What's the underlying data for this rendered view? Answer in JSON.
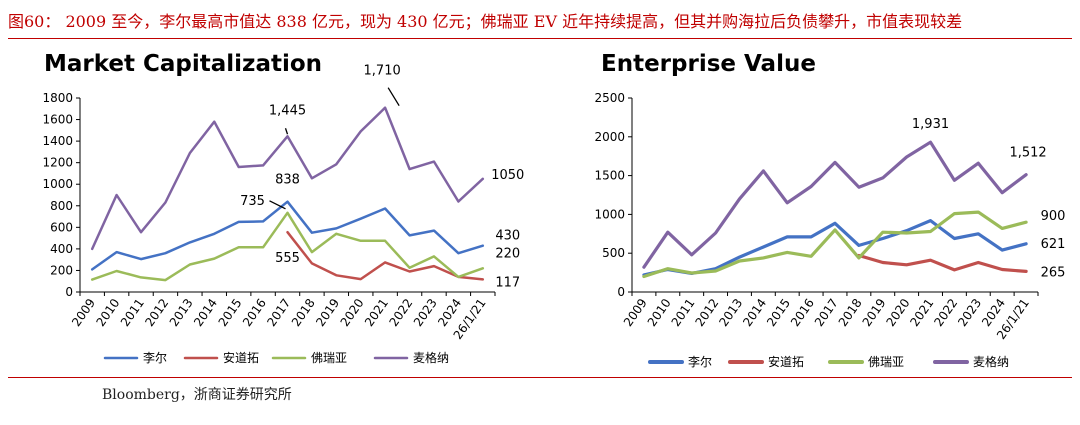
{
  "figure": {
    "title": "图60： 2009 至今，李尔最高市值达 838 亿元，现为 430 亿元；佛瑞亚 EV 近年持续提高，但其并购海拉后负债攀升，市值表现较差",
    "source": "Bloomberg，浙商证券研究所"
  },
  "chart_data": [
    {
      "type": "line",
      "title": "Market Capitalization",
      "categories": [
        "2009",
        "2010",
        "2011",
        "2012",
        "2013",
        "2014",
        "2015",
        "2016",
        "2017",
        "2018",
        "2019",
        "2020",
        "2021",
        "2022",
        "2023",
        "2024",
        "26/1/21"
      ],
      "ylim": [
        0,
        1800
      ],
      "yticks": [
        0,
        200,
        400,
        600,
        800,
        1000,
        1200,
        1400,
        1600,
        1800
      ],
      "xlabel": "",
      "ylabel": "",
      "series": [
        {
          "name": "李尔",
          "color": "#4472c4",
          "values": [
            210,
            370,
            305,
            360,
            460,
            540,
            650,
            655,
            838,
            550,
            590,
            680,
            775,
            525,
            570,
            360,
            430
          ]
        },
        {
          "name": "安道拓",
          "color": "#c0504d",
          "values": [
            null,
            null,
            null,
            null,
            null,
            null,
            null,
            null,
            555,
            265,
            155,
            120,
            275,
            190,
            240,
            140,
            117
          ]
        },
        {
          "name": "佛瑞亚",
          "color": "#9bbb59",
          "values": [
            115,
            195,
            135,
            110,
            255,
            310,
            415,
            415,
            735,
            370,
            540,
            475,
            475,
            225,
            330,
            140,
            220
          ]
        },
        {
          "name": "麦格纳",
          "color": "#8064a2",
          "values": [
            400,
            900,
            555,
            830,
            1290,
            1580,
            1160,
            1175,
            1445,
            1055,
            1185,
            1490,
            1710,
            1140,
            1210,
            840,
            1050
          ]
        }
      ],
      "annotations": [
        {
          "text": "1,710",
          "series": "麦格纳",
          "category": "2021"
        },
        {
          "text": "1,445",
          "series": "麦格纳",
          "category": "2017"
        },
        {
          "text": "838",
          "series": "李尔",
          "category": "2017"
        },
        {
          "text": "735",
          "series": "佛瑞亚",
          "category": "2017"
        },
        {
          "text": "555",
          "series": "安道拓",
          "category": "2017"
        },
        {
          "text": "1050",
          "series": "麦格纳",
          "category": "26/1/21"
        },
        {
          "text": "430",
          "series": "李尔",
          "category": "26/1/21"
        },
        {
          "text": "220",
          "series": "佛瑞亚",
          "category": "26/1/21"
        },
        {
          "text": "117",
          "series": "安道拓",
          "category": "26/1/21"
        }
      ],
      "legend": "bottom"
    },
    {
      "type": "line",
      "title": "Enterprise Value",
      "categories": [
        "2009",
        "2010",
        "2011",
        "2012",
        "2013",
        "2014",
        "2015",
        "2016",
        "2017",
        "2018",
        "2019",
        "2020",
        "2021",
        "2022",
        "2023",
        "2024",
        "26/1/21"
      ],
      "ylim": [
        0,
        2500
      ],
      "yticks": [
        0,
        500,
        1000,
        1500,
        2000,
        2500
      ],
      "xlabel": "",
      "ylabel": "",
      "series": [
        {
          "name": "李尔",
          "color": "#4472c4",
          "values": [
            220,
            290,
            240,
            300,
            450,
            580,
            710,
            710,
            885,
            600,
            690,
            790,
            920,
            690,
            750,
            540,
            621
          ]
        },
        {
          "name": "安道拓",
          "color": "#c0504d",
          "values": [
            null,
            null,
            null,
            null,
            null,
            null,
            null,
            null,
            null,
            470,
            380,
            350,
            410,
            285,
            380,
            290,
            265
          ]
        },
        {
          "name": "佛瑞亚",
          "color": "#9bbb59",
          "values": [
            200,
            300,
            245,
            270,
            400,
            440,
            510,
            460,
            800,
            440,
            770,
            760,
            780,
            1010,
            1030,
            820,
            900
          ]
        },
        {
          "name": "麦格纳",
          "color": "#8064a2",
          "values": [
            320,
            770,
            480,
            760,
            1200,
            1560,
            1150,
            1360,
            1670,
            1350,
            1470,
            1740,
            1931,
            1440,
            1660,
            1280,
            1512
          ]
        }
      ],
      "annotations": [
        {
          "text": "1,931",
          "series": "麦格纳",
          "category": "2021"
        },
        {
          "text": "1,512",
          "series": "麦格纳",
          "category": "26/1/21"
        },
        {
          "text": "900",
          "series": "佛瑞亚",
          "category": "26/1/21"
        },
        {
          "text": "621",
          "series": "李尔",
          "category": "26/1/21"
        },
        {
          "text": "265",
          "series": "安道拓",
          "category": "26/1/21"
        }
      ],
      "legend": "bottom"
    }
  ]
}
